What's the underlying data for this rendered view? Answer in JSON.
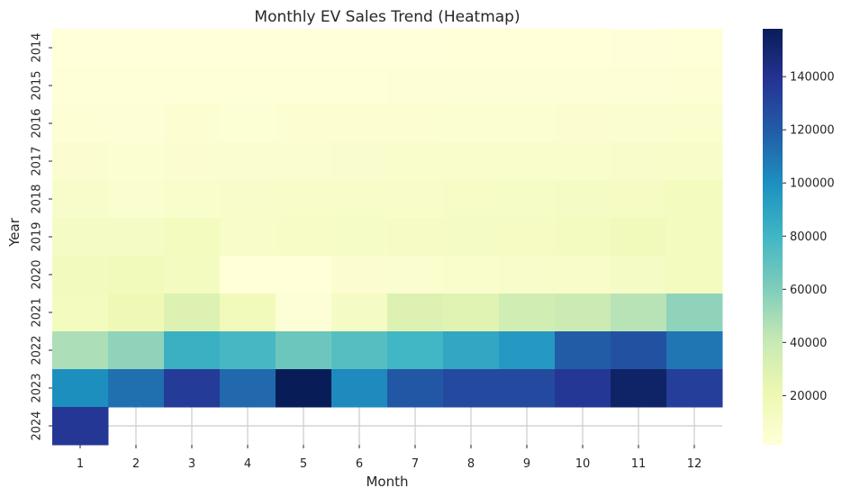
{
  "chart_data": {
    "type": "heatmap",
    "title": "Monthly EV Sales Trend (Heatmap)",
    "xlabel": "Month",
    "ylabel": "Year",
    "x": [
      1,
      2,
      3,
      4,
      5,
      6,
      7,
      8,
      9,
      10,
      11,
      12
    ],
    "y": [
      2014,
      2015,
      2016,
      2017,
      2018,
      2019,
      2020,
      2021,
      2022,
      2023,
      2024
    ],
    "values": [
      [
        1500,
        1500,
        1500,
        1600,
        1600,
        1700,
        1700,
        1800,
        1800,
        2000,
        2200,
        2500
      ],
      [
        2500,
        2500,
        2500,
        2600,
        2700,
        2800,
        2900,
        3000,
        3100,
        3300,
        3600,
        4000
      ],
      [
        4000,
        3500,
        5000,
        4500,
        4800,
        5000,
        5200,
        5400,
        5600,
        6000,
        6500,
        7000
      ],
      [
        6000,
        5500,
        6000,
        6500,
        7000,
        7500,
        8000,
        8500,
        8000,
        8500,
        9000,
        9500
      ],
      [
        9000,
        7000,
        8000,
        9000,
        9500,
        10000,
        10000,
        10500,
        11000,
        12000,
        12500,
        14000
      ],
      [
        12000,
        12000,
        14000,
        10000,
        10500,
        11000,
        11500,
        12000,
        12500,
        13500,
        16000,
        14000
      ],
      [
        15000,
        16000,
        13000,
        2000,
        2000,
        6000,
        7000,
        8000,
        9000,
        10000,
        12000,
        14000
      ],
      [
        14000,
        19000,
        30000,
        16000,
        3500,
        12000,
        30000,
        28000,
        36000,
        38000,
        45000,
        56000
      ],
      [
        48000,
        56000,
        83000,
        78000,
        66000,
        73000,
        80000,
        88000,
        95000,
        120000,
        125000,
        110000
      ],
      [
        100000,
        112000,
        135000,
        115000,
        158000,
        102000,
        122000,
        128000,
        128000,
        137000,
        153000,
        134000
      ],
      [
        137000,
        null,
        null,
        null,
        null,
        null,
        null,
        null,
        null,
        null,
        null,
        null
      ]
    ],
    "colorbar": {
      "min": 1500,
      "max": 158000,
      "ticks": [
        20000,
        40000,
        60000,
        80000,
        100000,
        120000,
        140000
      ]
    },
    "colormap": [
      "#ffffd9",
      "#edf8b1",
      "#c7e9b4",
      "#7fcdbb",
      "#41b6c4",
      "#1d91c0",
      "#225ea8",
      "#253494",
      "#081d58"
    ],
    "grid": true
  }
}
